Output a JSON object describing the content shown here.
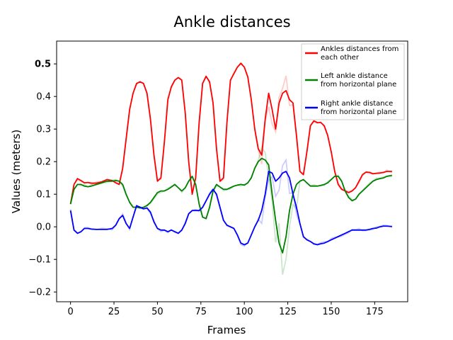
{
  "chart_data": {
    "type": "line",
    "title": "Ankle distances",
    "xlabel": "Frames",
    "ylabel": "Values (meters)",
    "xlim": [
      -8,
      194
    ],
    "ylim": [
      -0.23,
      0.57
    ],
    "xticks": [
      0,
      25,
      50,
      75,
      100,
      125,
      150,
      175
    ],
    "yticks": [
      -0.2,
      -0.1,
      0.0,
      0.1,
      0.2,
      0.3,
      0.4,
      0.5
    ],
    "ytick_labels": [
      "−0.2",
      "−0.1",
      "0.0",
      "0.1",
      "0.2",
      "0.3",
      "0.4",
      "0.5"
    ],
    "grid": false,
    "legend_position": "top-right",
    "series": [
      {
        "name": "Ankles distances from each other",
        "color": "#ff0000",
        "x": [
          0,
          2,
          4,
          6,
          8,
          10,
          12,
          15,
          18,
          21,
          24,
          26,
          28,
          30,
          32,
          34,
          36,
          38,
          40,
          42,
          44,
          46,
          48,
          50,
          52,
          54,
          56,
          58,
          60,
          62,
          64,
          66,
          68,
          70,
          72,
          74,
          76,
          78,
          80,
          82,
          84,
          86,
          88,
          90,
          92,
          94,
          96,
          98,
          100,
          102,
          104,
          106,
          108,
          110,
          112,
          114,
          116,
          118,
          120,
          122,
          124,
          126,
          128,
          130,
          132,
          134,
          136,
          138,
          140,
          142,
          144,
          146,
          148,
          150,
          152,
          154,
          156,
          158,
          160,
          162,
          164,
          166,
          168,
          170,
          172,
          174,
          176,
          178,
          180,
          182,
          185
        ],
        "y": [
          0.07,
          0.13,
          0.148,
          0.142,
          0.135,
          0.136,
          0.134,
          0.134,
          0.138,
          0.145,
          0.142,
          0.135,
          0.13,
          0.18,
          0.27,
          0.36,
          0.41,
          0.44,
          0.445,
          0.44,
          0.41,
          0.33,
          0.22,
          0.14,
          0.15,
          0.26,
          0.39,
          0.43,
          0.45,
          0.458,
          0.45,
          0.35,
          0.2,
          0.1,
          0.15,
          0.32,
          0.44,
          0.462,
          0.445,
          0.38,
          0.24,
          0.14,
          0.15,
          0.32,
          0.45,
          0.47,
          0.49,
          0.502,
          0.49,
          0.46,
          0.39,
          0.3,
          0.24,
          0.22,
          0.33,
          0.41,
          0.36,
          0.3,
          0.38,
          0.41,
          0.418,
          0.39,
          0.38,
          0.28,
          0.17,
          0.16,
          0.23,
          0.31,
          0.325,
          0.32,
          0.32,
          0.31,
          0.28,
          0.23,
          0.17,
          0.13,
          0.115,
          0.11,
          0.105,
          0.11,
          0.12,
          0.14,
          0.16,
          0.168,
          0.167,
          0.163,
          0.164,
          0.165,
          0.167,
          0.17,
          0.17
        ]
      },
      {
        "name": "Left ankle distance from horizontal plane",
        "color": "#008000",
        "x": [
          0,
          2,
          4,
          6,
          8,
          10,
          12,
          15,
          18,
          21,
          24,
          26,
          28,
          30,
          32,
          34,
          36,
          38,
          40,
          42,
          44,
          46,
          48,
          50,
          52,
          54,
          56,
          58,
          60,
          62,
          64,
          66,
          68,
          70,
          72,
          74,
          76,
          78,
          80,
          82,
          84,
          86,
          88,
          90,
          92,
          94,
          96,
          98,
          100,
          102,
          104,
          106,
          108,
          110,
          112,
          114,
          116,
          118,
          120,
          122,
          124,
          126,
          128,
          130,
          132,
          134,
          136,
          138,
          140,
          142,
          144,
          146,
          148,
          150,
          152,
          154,
          156,
          158,
          160,
          162,
          164,
          166,
          168,
          170,
          172,
          174,
          176,
          178,
          180,
          182,
          185
        ],
        "y": [
          0.07,
          0.115,
          0.13,
          0.13,
          0.125,
          0.123,
          0.125,
          0.13,
          0.135,
          0.14,
          0.14,
          0.142,
          0.14,
          0.13,
          0.1,
          0.075,
          0.06,
          0.06,
          0.058,
          0.06,
          0.065,
          0.075,
          0.09,
          0.105,
          0.11,
          0.11,
          0.115,
          0.122,
          0.13,
          0.12,
          0.11,
          0.12,
          0.14,
          0.155,
          0.13,
          0.07,
          0.03,
          0.025,
          0.06,
          0.11,
          0.13,
          0.122,
          0.115,
          0.115,
          0.12,
          0.125,
          0.128,
          0.13,
          0.128,
          0.135,
          0.15,
          0.18,
          0.2,
          0.21,
          0.205,
          0.19,
          0.1,
          0.02,
          -0.05,
          -0.08,
          -0.03,
          0.05,
          0.1,
          0.13,
          0.14,
          0.145,
          0.135,
          0.125,
          0.125,
          0.125,
          0.127,
          0.13,
          0.135,
          0.145,
          0.155,
          0.155,
          0.14,
          0.11,
          0.09,
          0.08,
          0.085,
          0.1,
          0.11,
          0.12,
          0.13,
          0.14,
          0.145,
          0.148,
          0.15,
          0.155,
          0.158
        ]
      },
      {
        "name": "Right ankle distance from horizontal plane",
        "color": "#0000ff",
        "x": [
          0,
          2,
          4,
          6,
          8,
          10,
          12,
          15,
          18,
          21,
          24,
          26,
          28,
          30,
          32,
          34,
          36,
          38,
          40,
          42,
          44,
          46,
          48,
          50,
          52,
          54,
          56,
          58,
          60,
          62,
          64,
          66,
          68,
          70,
          72,
          74,
          76,
          78,
          80,
          82,
          84,
          86,
          88,
          90,
          92,
          94,
          96,
          98,
          100,
          102,
          104,
          106,
          108,
          110,
          112,
          114,
          116,
          118,
          120,
          122,
          124,
          126,
          128,
          130,
          132,
          134,
          136,
          138,
          140,
          142,
          144,
          146,
          148,
          150,
          152,
          154,
          156,
          158,
          160,
          162,
          164,
          166,
          168,
          170,
          172,
          174,
          176,
          178,
          180,
          182,
          185
        ],
        "y": [
          0.05,
          -0.01,
          -0.02,
          -0.015,
          -0.005,
          -0.005,
          -0.007,
          -0.008,
          -0.008,
          -0.008,
          -0.005,
          0.005,
          0.025,
          0.035,
          0.01,
          -0.005,
          0.03,
          0.065,
          0.06,
          0.055,
          0.058,
          0.045,
          0.015,
          -0.005,
          -0.01,
          -0.01,
          -0.015,
          -0.01,
          -0.015,
          -0.02,
          -0.01,
          0.01,
          0.04,
          0.05,
          0.05,
          0.05,
          0.06,
          0.08,
          0.1,
          0.115,
          0.1,
          0.06,
          0.02,
          0.005,
          0.0,
          -0.005,
          -0.025,
          -0.05,
          -0.055,
          -0.05,
          -0.025,
          0.0,
          0.02,
          0.05,
          0.1,
          0.17,
          0.165,
          0.14,
          0.15,
          0.165,
          0.17,
          0.15,
          0.1,
          0.06,
          0.01,
          -0.03,
          -0.04,
          -0.045,
          -0.052,
          -0.055,
          -0.052,
          -0.05,
          -0.045,
          -0.04,
          -0.035,
          -0.03,
          -0.025,
          -0.02,
          -0.015,
          -0.01,
          -0.01,
          -0.01,
          -0.01,
          -0.01,
          -0.008,
          -0.005,
          -0.004,
          0.0,
          0.002,
          0.002,
          0.001
        ]
      }
    ]
  }
}
